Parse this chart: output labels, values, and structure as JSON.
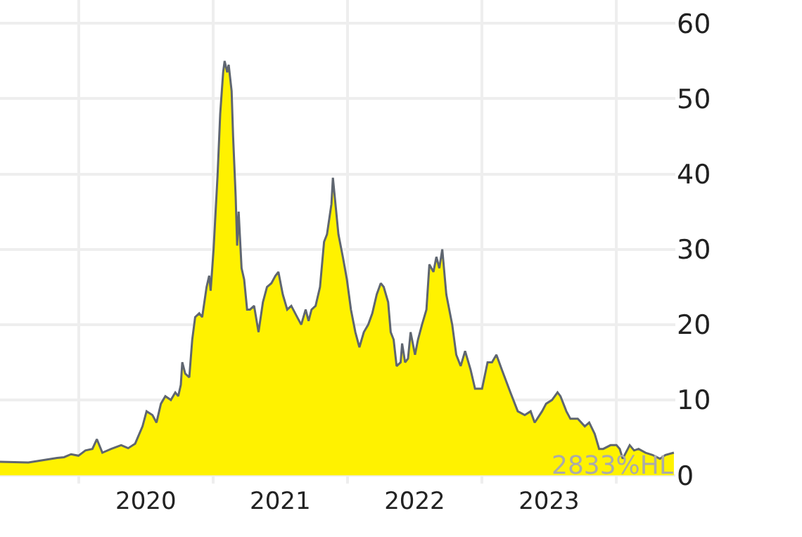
{
  "chart_data": {
    "type": "area",
    "x": [
      "2019-06-02",
      "2019-08-18",
      "2019-09-26",
      "2019-11-04",
      "2019-11-23",
      "2019-12-12",
      "2020-01-01",
      "2020-01-20",
      "2020-02-08",
      "2020-02-20",
      "2020-03-06",
      "2020-03-30",
      "2020-04-26",
      "2020-05-15",
      "2020-06-03",
      "2020-06-23",
      "2020-07-04",
      "2020-07-20",
      "2020-07-31",
      "2020-08-12",
      "2020-08-24",
      "2020-09-08",
      "2020-09-20",
      "2020-09-28",
      "2020-10-05",
      "2020-10-09",
      "2020-10-17",
      "2020-10-28",
      "2020-11-05",
      "2020-11-13",
      "2020-11-24",
      "2020-12-02",
      "2020-12-14",
      "2020-12-21",
      "2020-12-25",
      "2021-01-02",
      "2021-01-13",
      "2021-01-20",
      "2021-01-28",
      "2021-02-01",
      "2021-02-08",
      "2021-02-12",
      "2021-02-20",
      "2021-02-24",
      "2021-03-03",
      "2021-03-07",
      "2021-03-11",
      "2021-03-19",
      "2021-03-26",
      "2021-04-03",
      "2021-04-11",
      "2021-04-22",
      "2021-05-04",
      "2021-05-16",
      "2021-05-27",
      "2021-06-08",
      "2021-06-19",
      "2021-06-27",
      "2021-07-09",
      "2021-07-21",
      "2021-08-01",
      "2021-08-17",
      "2021-08-28",
      "2021-09-09",
      "2021-09-17",
      "2021-09-25",
      "2021-10-06",
      "2021-10-18",
      "2021-10-29",
      "2021-11-06",
      "2021-11-18",
      "2021-11-22",
      "2021-11-29",
      "2021-12-07",
      "2021-12-19",
      "2021-12-30",
      "2022-01-10",
      "2022-01-22",
      "2022-02-02",
      "2022-02-14",
      "2022-02-26",
      "2022-03-09",
      "2022-03-21",
      "2022-04-01",
      "2022-04-09",
      "2022-04-21",
      "2022-04-28",
      "2022-05-06",
      "2022-05-14",
      "2022-05-25",
      "2022-05-29",
      "2022-06-06",
      "2022-06-14",
      "2022-06-21",
      "2022-07-03",
      "2022-07-11",
      "2022-07-22",
      "2022-08-03",
      "2022-08-11",
      "2022-08-22",
      "2022-08-30",
      "2022-09-07",
      "2022-09-15",
      "2022-09-26",
      "2022-10-12",
      "2022-10-23",
      "2022-11-04",
      "2022-11-16",
      "2022-12-01",
      "2022-12-13",
      "2023-01-01",
      "2023-01-16",
      "2023-01-28",
      "2023-02-09",
      "2023-02-24",
      "2023-03-19",
      "2023-04-08",
      "2023-04-27",
      "2023-05-13",
      "2023-05-24",
      "2023-06-13",
      "2023-06-24",
      "2023-07-10",
      "2023-07-25",
      "2023-08-02",
      "2023-08-18",
      "2023-08-29",
      "2023-09-18",
      "2023-10-07",
      "2023-10-19",
      "2023-11-03",
      "2023-11-15",
      "2023-11-26",
      "2023-12-16",
      "2024-01-01",
      "2024-01-10",
      "2024-01-18",
      "2024-02-06",
      "2024-02-18",
      "2024-03-01",
      "2024-03-20",
      "2024-04-08",
      "2024-04-28",
      "2024-05-13",
      "2024-06-05"
    ],
    "series": [
      {
        "color": "#fff200",
        "values": [
          1.8,
          1.7,
          2.0,
          2.3,
          2.4,
          2.8,
          2.6,
          3.3,
          3.5,
          4.8,
          3.0,
          3.5,
          4.0,
          3.6,
          4.2,
          6.5,
          8.5,
          8.0,
          7.0,
          9.5,
          10.5,
          10.0,
          11.0,
          10.5,
          12.0,
          15.0,
          13.5,
          13.0,
          18.0,
          21.0,
          21.5,
          21.0,
          25.0,
          26.5,
          24.5,
          30.0,
          40.0,
          48.0,
          53.5,
          55.0,
          53.5,
          54.5,
          51.0,
          45.0,
          37.0,
          30.5,
          35.0,
          27.5,
          26.0,
          22.0,
          22.0,
          22.5,
          19.0,
          23.0,
          25.0,
          25.5,
          26.5,
          27.0,
          24.0,
          22.0,
          22.5,
          21.0,
          20.0,
          22.0,
          20.5,
          22.0,
          22.5,
          25.0,
          31.0,
          32.0,
          36.0,
          39.5,
          36.0,
          32.0,
          29.0,
          26.0,
          22.0,
          19.0,
          17.0,
          19.0,
          20.0,
          21.5,
          24.0,
          25.5,
          25.0,
          23.0,
          19.0,
          18.0,
          14.5,
          15.0,
          17.5,
          15.0,
          15.5,
          19.0,
          16.0,
          18.0,
          20.0,
          22.0,
          28.0,
          27.0,
          29.0,
          27.5,
          30.0,
          24.0,
          20.0,
          16.0,
          14.5,
          16.5,
          14.0,
          11.5,
          11.5,
          15.0,
          15.0,
          16.0,
          14.0,
          11.0,
          8.5,
          8.0,
          8.5,
          7.0,
          8.5,
          9.5,
          10.0,
          11.0,
          10.5,
          8.5,
          7.5,
          7.5,
          6.5,
          7.0,
          5.5,
          3.5,
          3.5,
          4.0,
          4.0,
          3.5,
          2.2,
          4.0,
          3.3,
          3.5,
          3.0,
          2.7,
          2.2,
          2.7,
          3.0
        ]
      }
    ],
    "xlim": [
      "2019-06-02",
      "2024-06-09"
    ],
    "xticks": [
      {
        "value": "2020-01-01",
        "label": null
      },
      {
        "value": "2021-01-01",
        "label": null
      },
      {
        "value": "2022-01-01",
        "label": null
      },
      {
        "value": "2023-01-01",
        "label": null
      },
      {
        "value": "2024-01-01",
        "label": null
      },
      {
        "value": "2020-07-02",
        "label": "2020"
      },
      {
        "value": "2021-07-02",
        "label": "2021"
      },
      {
        "value": "2022-07-02",
        "label": "2022"
      },
      {
        "value": "2023-07-02",
        "label": "2023"
      }
    ],
    "ylim": [
      -1.1,
      63.1
    ],
    "yticks": [
      0,
      10,
      20,
      30,
      40,
      50,
      60
    ],
    "grid": true,
    "annotations": [
      "2833%HL"
    ]
  }
}
